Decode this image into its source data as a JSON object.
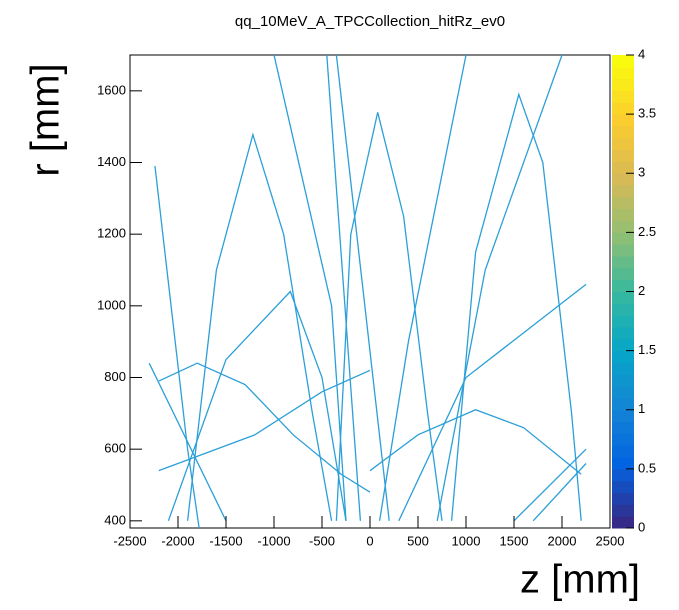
{
  "chart_data": {
    "type": "scatter",
    "title": "qq_10MeV_A_TPCCollection_hitRz_ev0",
    "x_label": "z [mm]",
    "y_label": "r [mm]",
    "color": "#2b9fd8",
    "xlim": [
      -2500,
      2500
    ],
    "xticks": [
      -2500,
      -2000,
      -1500,
      -1000,
      -500,
      0,
      500,
      1000,
      1500,
      2000,
      2500
    ],
    "ylim": [
      380,
      1700
    ],
    "yticks": [
      400,
      600,
      800,
      1000,
      1200,
      1400,
      1600
    ],
    "zlim": [
      0,
      4
    ],
    "zticks": [
      0,
      0.5,
      1,
      1.5,
      2,
      2.5,
      3,
      3.5,
      4
    ],
    "series": [
      {
        "x": [
          -2240,
          -1900,
          -1780
        ],
        "values": [
          1390,
          600,
          380
        ]
      },
      {
        "x": [
          -1900,
          -1600,
          -1220,
          -900,
          -600,
          -400
        ],
        "values": [
          400,
          1100,
          1478,
          1200,
          700,
          400
        ]
      },
      {
        "x": [
          -350,
          -200,
          80,
          350,
          600,
          750
        ],
        "values": [
          400,
          1200,
          1540,
          1250,
          700,
          400
        ]
      },
      {
        "x": [
          850,
          1100,
          1550,
          1800,
          2100,
          2200
        ],
        "values": [
          400,
          1150,
          1590,
          1400,
          700,
          400
        ]
      },
      {
        "x": [
          -2100,
          -1500,
          -830,
          -500,
          -250
        ],
        "values": [
          400,
          850,
          1040,
          800,
          400
        ]
      },
      {
        "x": [
          -2200,
          -1800,
          -1300,
          -800,
          -300,
          0
        ],
        "values": [
          790,
          840,
          780,
          640,
          530,
          480
        ]
      },
      {
        "x": [
          -2200,
          -1200,
          -500,
          0
        ],
        "values": [
          540,
          640,
          760,
          820
        ]
      },
      {
        "x": [
          0,
          500,
          1100,
          1600,
          2200
        ],
        "values": [
          540,
          640,
          710,
          660,
          530
        ]
      },
      {
        "x": [
          -1000,
          -400,
          -250
        ],
        "values": [
          1700,
          1000,
          400
        ]
      },
      {
        "x": [
          -450,
          -100
        ],
        "values": [
          1700,
          400
        ]
      },
      {
        "x": [
          -350,
          200
        ],
        "values": [
          1700,
          400
        ]
      },
      {
        "x": [
          300,
          1000,
          2250
        ],
        "values": [
          400,
          800,
          1060
        ]
      },
      {
        "x": [
          1000,
          400,
          100
        ],
        "values": [
          1700,
          900,
          400
        ]
      },
      {
        "x": [
          2000,
          1200,
          700
        ],
        "values": [
          1700,
          1100,
          400
        ]
      },
      {
        "x": [
          1500,
          2250
        ],
        "values": [
          400,
          600
        ]
      },
      {
        "x": [
          1700,
          2250
        ],
        "values": [
          400,
          560
        ]
      },
      {
        "x": [
          -2300,
          -1500
        ],
        "values": [
          840,
          400
        ]
      }
    ]
  }
}
